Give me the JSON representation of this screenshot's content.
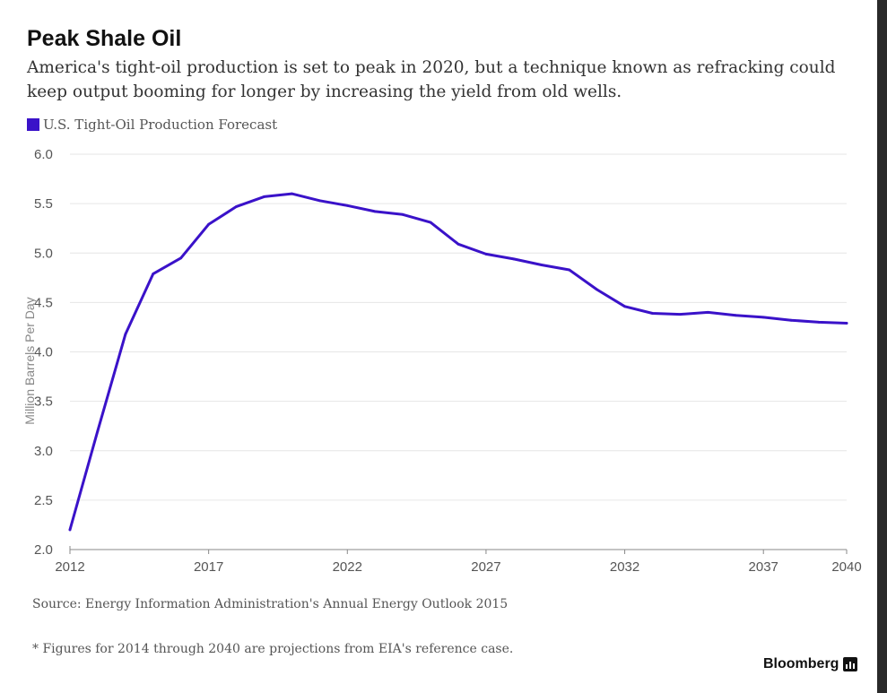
{
  "header": {
    "title": "Peak Shale Oil",
    "subtitle": "America's tight-oil production is set to peak in 2020, but a technique known as refracking could keep output booming for longer by increasing the yield from old wells."
  },
  "footer": {
    "source": "Source: Energy Information Administration's Annual Energy Outlook 2015",
    "footnote": "* Figures for 2014 through 2040 are projections from EIA's reference case.",
    "brand": "Bloomberg",
    "brand_icon": "bloomberg-logo-icon"
  },
  "colors": {
    "series": "#3a12c9",
    "grid": "#e6e6e6",
    "axis": "#888888",
    "frame": "#2a2a2a"
  },
  "chart_data": {
    "type": "line",
    "title": "Peak Shale Oil",
    "subtitle": "America's tight-oil production is set to peak in 2020, but a technique known as refracking could keep output booming for longer by increasing the yield from old wells.",
    "xlabel": "",
    "ylabel": "Million Barrels Per Day",
    "xlim": [
      2012,
      2040
    ],
    "ylim": [
      2.0,
      6.0
    ],
    "x_ticks": [
      "2012",
      "2017",
      "2022",
      "2027",
      "2032",
      "2037",
      "2040"
    ],
    "y_ticks": [
      "2.0",
      "2.5",
      "3.0",
      "3.5",
      "4.0",
      "4.5",
      "5.0",
      "5.5",
      "6.0"
    ],
    "grid": true,
    "legend": "top-left",
    "series": [
      {
        "name": "U.S. Tight-Oil Production Forecast",
        "x": [
          2012,
          2013,
          2014,
          2015,
          2016,
          2017,
          2018,
          2019,
          2020,
          2021,
          2022,
          2023,
          2024,
          2025,
          2026,
          2027,
          2028,
          2029,
          2030,
          2031,
          2032,
          2033,
          2034,
          2035,
          2036,
          2037,
          2038,
          2039,
          2040
        ],
        "values": [
          2.2,
          3.2,
          4.18,
          4.79,
          4.95,
          5.29,
          5.47,
          5.57,
          5.6,
          5.53,
          5.48,
          5.42,
          5.39,
          5.31,
          5.09,
          4.99,
          4.94,
          4.88,
          4.83,
          4.63,
          4.46,
          4.39,
          4.38,
          4.4,
          4.37,
          4.35,
          4.32,
          4.3,
          4.29
        ]
      }
    ]
  }
}
